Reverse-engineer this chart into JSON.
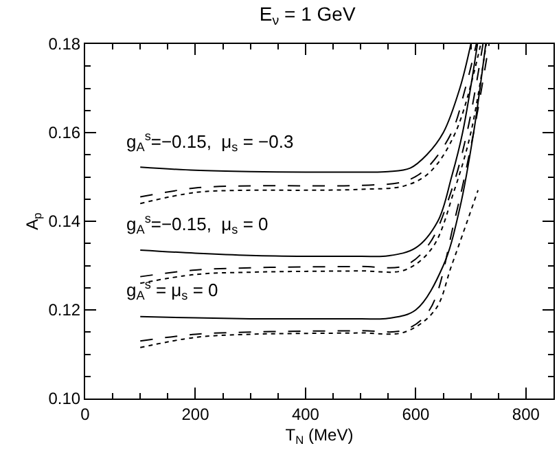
{
  "chart_data": {
    "type": "line",
    "title": "E$_{ν}$ = 1 GeV",
    "xlabel": "T$_{N}$ (MeV)",
    "ylabel": "A$_{p}$",
    "xlim": [
      0,
      850
    ],
    "xticks": [
      0,
      200,
      400,
      600,
      800
    ],
    "ylim": [
      0.1,
      0.18
    ],
    "yticks": [
      {
        "value": 0.1,
        "label": "0.10"
      },
      {
        "value": 0.12,
        "label": "0.12"
      },
      {
        "value": 0.14,
        "label": "0.14"
      },
      {
        "value": 0.16,
        "label": "0.16"
      },
      {
        "value": 0.18,
        "label": "0.18"
      }
    ],
    "marker": "none",
    "annotations": [
      "g$_{A}$$^{s}$=−0.15,  μ$_{s}$ = −0.3",
      "g$_{A}$$^{s}$=−0.15,  μ$_{s}$ = 0",
      "g$_{A}$$^{s}$ = μ$_{s}$ = 0"
    ],
    "series": [
      {
        "color": "#000000",
        "line_style": "solid",
        "x": [
          100,
          200,
          300,
          400,
          500,
          550,
          590,
          620,
          650,
          680,
          700
        ],
        "values": [
          0.1522,
          0.1515,
          0.1512,
          0.1511,
          0.1511,
          0.1512,
          0.152,
          0.155,
          0.16,
          0.17,
          0.18
        ]
      },
      {
        "color": "#000000",
        "line_style": "dashed",
        "x": [
          100,
          200,
          300,
          400,
          500,
          580,
          620,
          665,
          690,
          710
        ],
        "values": [
          0.1455,
          0.1475,
          0.148,
          0.148,
          0.1481,
          0.149,
          0.152,
          0.16,
          0.17,
          0.18
        ]
      },
      {
        "color": "#000000",
        "line_style": "dotted",
        "x": [
          100,
          200,
          300,
          400,
          500,
          580,
          625,
          672,
          718
        ],
        "values": [
          0.144,
          0.1465,
          0.147,
          0.147,
          0.1472,
          0.148,
          0.151,
          0.16,
          0.18
        ]
      },
      {
        "color": "#000000",
        "line_style": "solid",
        "x": [
          100,
          200,
          300,
          400,
          500,
          550,
          600,
          640,
          665,
          685,
          712
        ],
        "values": [
          0.1335,
          0.1328,
          0.1323,
          0.1321,
          0.1321,
          0.1322,
          0.134,
          0.14,
          0.15,
          0.16,
          0.18
        ]
      },
      {
        "color": "#000000",
        "line_style": "dashed",
        "x": [
          100,
          200,
          300,
          400,
          500,
          580,
          625,
          665,
          693,
          722
        ],
        "values": [
          0.1275,
          0.129,
          0.1295,
          0.1297,
          0.1298,
          0.13,
          0.135,
          0.147,
          0.16,
          0.18
        ]
      },
      {
        "color": "#000000",
        "line_style": "dotted",
        "x": [
          100,
          200,
          300,
          400,
          500,
          580,
          630,
          670,
          700,
          728
        ],
        "values": [
          0.126,
          0.128,
          0.1285,
          0.1287,
          0.1288,
          0.129,
          0.134,
          0.147,
          0.16,
          0.18
        ]
      },
      {
        "color": "#000000",
        "line_style": "solid",
        "x": [
          100,
          200,
          300,
          400,
          500,
          550,
          600,
          650,
          680,
          705,
          727
        ],
        "values": [
          0.1185,
          0.1182,
          0.118,
          0.118,
          0.118,
          0.1181,
          0.12,
          0.13,
          0.143,
          0.16,
          0.18
        ]
      },
      {
        "color": "#000000",
        "line_style": "dashed",
        "x": [
          100,
          200,
          300,
          400,
          500,
          580,
          625,
          670,
          705,
          733
        ],
        "values": [
          0.113,
          0.1145,
          0.115,
          0.1152,
          0.1153,
          0.1155,
          0.12,
          0.14,
          0.16,
          0.18
        ]
      },
      {
        "color": "#000000",
        "line_style": "dotted",
        "x": [
          100,
          200,
          300,
          400,
          500,
          580,
          635,
          665,
          713
        ],
        "values": [
          0.1115,
          0.1138,
          0.1145,
          0.1147,
          0.1148,
          0.115,
          0.12,
          0.13,
          0.147
        ]
      }
    ]
  }
}
